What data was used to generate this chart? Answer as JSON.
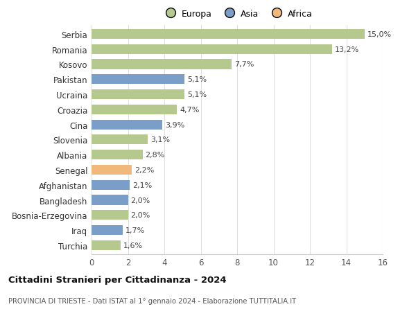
{
  "countries": [
    "Turchia",
    "Iraq",
    "Bosnia-Erzegovina",
    "Bangladesh",
    "Afghanistan",
    "Senegal",
    "Albania",
    "Slovenia",
    "Cina",
    "Croazia",
    "Ucraina",
    "Pakistan",
    "Kosovo",
    "Romania",
    "Serbia"
  ],
  "values": [
    1.6,
    1.7,
    2.0,
    2.0,
    2.1,
    2.2,
    2.8,
    3.1,
    3.9,
    4.7,
    5.1,
    5.1,
    7.7,
    13.2,
    15.0
  ],
  "labels": [
    "1,6%",
    "1,7%",
    "2,0%",
    "2,0%",
    "2,1%",
    "2,2%",
    "2,8%",
    "3,1%",
    "3,9%",
    "4,7%",
    "5,1%",
    "5,1%",
    "7,7%",
    "13,2%",
    "15,0%"
  ],
  "continents": [
    "Europa",
    "Asia",
    "Europa",
    "Asia",
    "Asia",
    "Africa",
    "Europa",
    "Europa",
    "Asia",
    "Europa",
    "Europa",
    "Asia",
    "Europa",
    "Europa",
    "Europa"
  ],
  "colors": {
    "Europa": "#b5c98e",
    "Asia": "#7a9ec8",
    "Africa": "#f0b87a"
  },
  "legend": [
    "Europa",
    "Asia",
    "Africa"
  ],
  "legend_colors": [
    "#b5c98e",
    "#7a9ec8",
    "#f0b87a"
  ],
  "title": "Cittadini Stranieri per Cittadinanza - 2024",
  "subtitle": "PROVINCIA DI TRIESTE - Dati ISTAT al 1° gennaio 2024 - Elaborazione TUTTITALIA.IT",
  "xlim": [
    0,
    16
  ],
  "xticks": [
    0,
    2,
    4,
    6,
    8,
    10,
    12,
    14,
    16
  ],
  "background_color": "#ffffff",
  "bar_height": 0.65
}
